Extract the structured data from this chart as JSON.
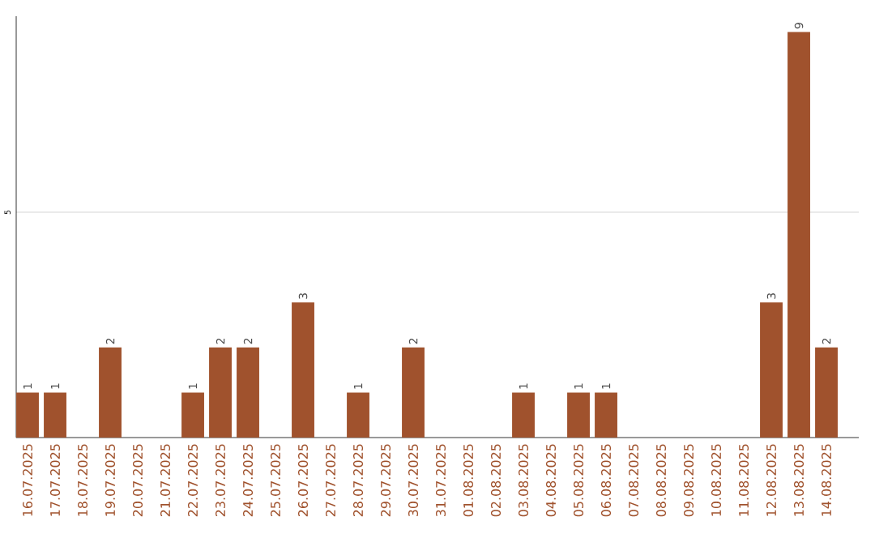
{
  "chart_data": {
    "type": "bar",
    "categories": [
      "16.07.2025",
      "17.07.2025",
      "18.07.2025",
      "19.07.2025",
      "20.07.2025",
      "21.07.2025",
      "22.07.2025",
      "23.07.2025",
      "24.07.2025",
      "25.07.2025",
      "26.07.2025",
      "27.07.2025",
      "28.07.2025",
      "29.07.2025",
      "30.07.2025",
      "31.07.2025",
      "01.08.2025",
      "02.08.2025",
      "03.08.2025",
      "04.08.2025",
      "05.08.2025",
      "06.08.2025",
      "07.08.2025",
      "08.08.2025",
      "09.08.2025",
      "10.08.2025",
      "11.08.2025",
      "12.08.2025",
      "13.08.2025",
      "14.08.2025"
    ],
    "values": [
      1,
      1,
      0,
      2,
      0,
      0,
      1,
      2,
      2,
      0,
      3,
      0,
      1,
      0,
      2,
      0,
      0,
      0,
      1,
      0,
      1,
      1,
      0,
      0,
      0,
      0,
      0,
      3,
      9,
      2
    ],
    "value_labels": [
      "1",
      "1",
      null,
      "2",
      null,
      null,
      "1",
      "2",
      "2",
      null,
      "3",
      null,
      "1",
      null,
      "2",
      null,
      null,
      null,
      "1",
      null,
      "1",
      "1",
      null,
      null,
      null,
      null,
      null,
      "3",
      "9",
      "2"
    ],
    "color": "#a0522d",
    "ylim": [
      0,
      9.35
    ],
    "yticks": [
      5
    ],
    "grid": "y"
  }
}
